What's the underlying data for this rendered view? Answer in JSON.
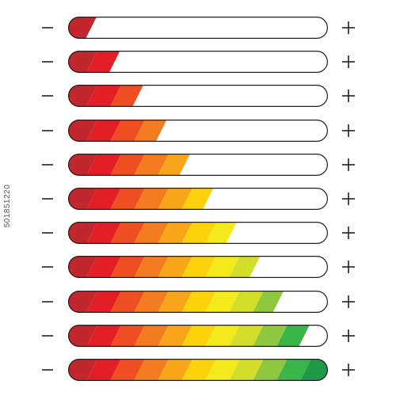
{
  "meter": {
    "minus_symbol": "−",
    "plus_symbol": "+",
    "segment_colors": [
      "#c1272d",
      "#e31e24",
      "#ef4e23",
      "#f47c20",
      "#f9a51a",
      "#fcd20a",
      "#f4ea1b",
      "#d3de2a",
      "#8fc73e",
      "#39b54a",
      "#1e9a48",
      "#0a7a3a"
    ],
    "outline_color": "#231f20",
    "level_fractions": [
      0.11,
      0.2,
      0.29,
      0.38,
      0.47,
      0.56,
      0.65,
      0.74,
      0.83,
      0.93,
      1.0
    ]
  },
  "watermark": {
    "stock_id": "501851220"
  }
}
